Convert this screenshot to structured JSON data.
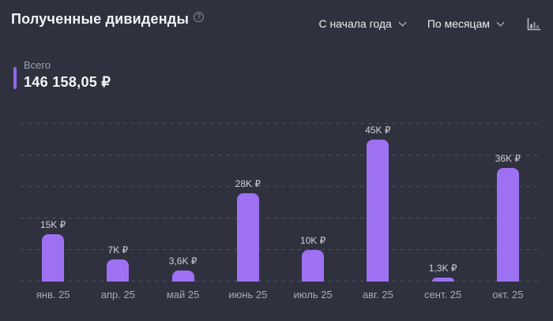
{
  "header": {
    "title": "Полученные дивиденды",
    "help_icon_glyph": "?",
    "period_dropdown": {
      "value": "С начала года"
    },
    "grouping_dropdown": {
      "value": "По месяцам"
    },
    "chart_type_icon": "bar-chart"
  },
  "summary": {
    "label": "Всего",
    "value": "146 158,05 ₽"
  },
  "chart_data": {
    "type": "bar",
    "title": "Полученные дивиденды",
    "categories": [
      "янв. 25",
      "апр. 25",
      "май 25",
      "июнь 25",
      "июль 25",
      "авг. 25",
      "сент. 25",
      "окт. 25"
    ],
    "values": [
      15000,
      7000,
      3600,
      28000,
      10000,
      45000,
      1300,
      36000
    ],
    "value_labels": [
      "15K ₽",
      "7K ₽",
      "3,6K ₽",
      "28K ₽",
      "10K ₽",
      "45K ₽",
      "1,3K ₽",
      "36K ₽"
    ],
    "xlabel": "",
    "ylabel": "",
    "ylim": [
      0,
      50000
    ],
    "gridline_step": 10000,
    "grid": true,
    "legend": false,
    "bar_color": "#9d71f2"
  },
  "colors": {
    "background": "#2f323e",
    "bar": "#9d71f2",
    "accent": "#8f67ea",
    "gridline": "#4b4f5d",
    "title_text": "#f2f3f6",
    "muted_text": "#9aa0ac"
  }
}
